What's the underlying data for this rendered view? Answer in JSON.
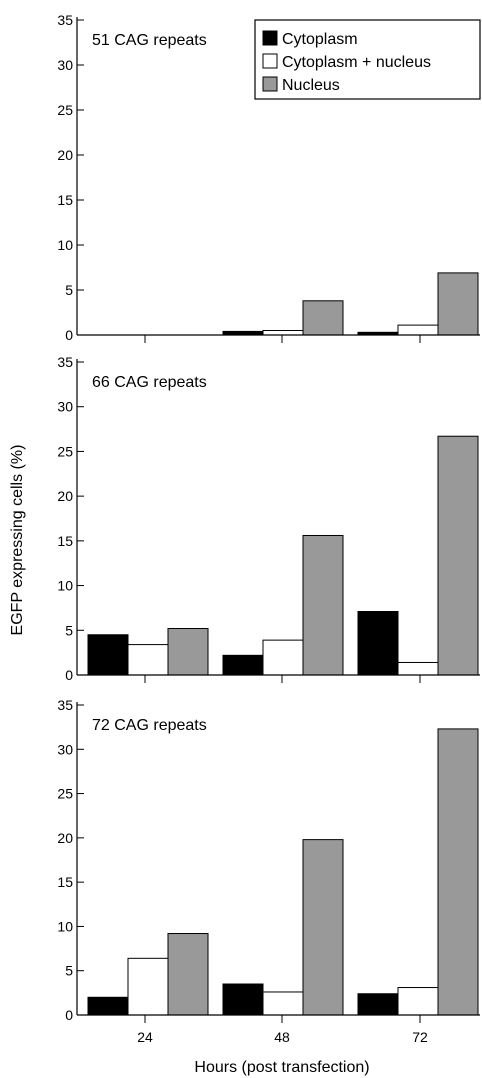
{
  "chart_data": {
    "type": "bar",
    "ylabel": "EGFP expressing cells (%)",
    "xlabel": "Hours (post transfection)",
    "categories": [
      "24",
      "48",
      "72"
    ],
    "ylim": [
      0,
      35
    ],
    "yticks": [
      "0",
      "5",
      "10",
      "15",
      "20",
      "25",
      "30",
      "35"
    ],
    "legend": {
      "placement": "top-right of first panel",
      "entries": [
        {
          "label": "Cytoplasm",
          "color": "#000000"
        },
        {
          "label": "Cytoplasm + nucleus",
          "color": "#ffffff"
        },
        {
          "label": "Nucleus",
          "color": "#999999"
        }
      ]
    },
    "panels": [
      {
        "title": "51 CAG repeats",
        "series": [
          {
            "name": "Cytoplasm",
            "color": "#000000",
            "values": [
              0,
              0.4,
              0.3
            ]
          },
          {
            "name": "Cytoplasm + nucleus",
            "color": "#ffffff",
            "values": [
              0,
              0.5,
              1.1
            ]
          },
          {
            "name": "Nucleus",
            "color": "#999999",
            "values": [
              0,
              3.8,
              6.9
            ]
          }
        ]
      },
      {
        "title": "66 CAG repeats",
        "series": [
          {
            "name": "Cytoplasm",
            "color": "#000000",
            "values": [
              4.5,
              2.2,
              7.1
            ]
          },
          {
            "name": "Cytoplasm + nucleus",
            "color": "#ffffff",
            "values": [
              3.4,
              3.9,
              1.4
            ]
          },
          {
            "name": "Nucleus",
            "color": "#999999",
            "values": [
              5.2,
              15.6,
              26.7
            ]
          }
        ]
      },
      {
        "title": "72 CAG repeats",
        "series": [
          {
            "name": "Cytoplasm",
            "color": "#000000",
            "values": [
              2.0,
              3.5,
              2.4
            ]
          },
          {
            "name": "Cytoplasm + nucleus",
            "color": "#ffffff",
            "values": [
              6.4,
              2.6,
              3.1
            ]
          },
          {
            "name": "Nucleus",
            "color": "#999999",
            "values": [
              9.2,
              19.8,
              32.3
            ]
          }
        ]
      }
    ]
  }
}
